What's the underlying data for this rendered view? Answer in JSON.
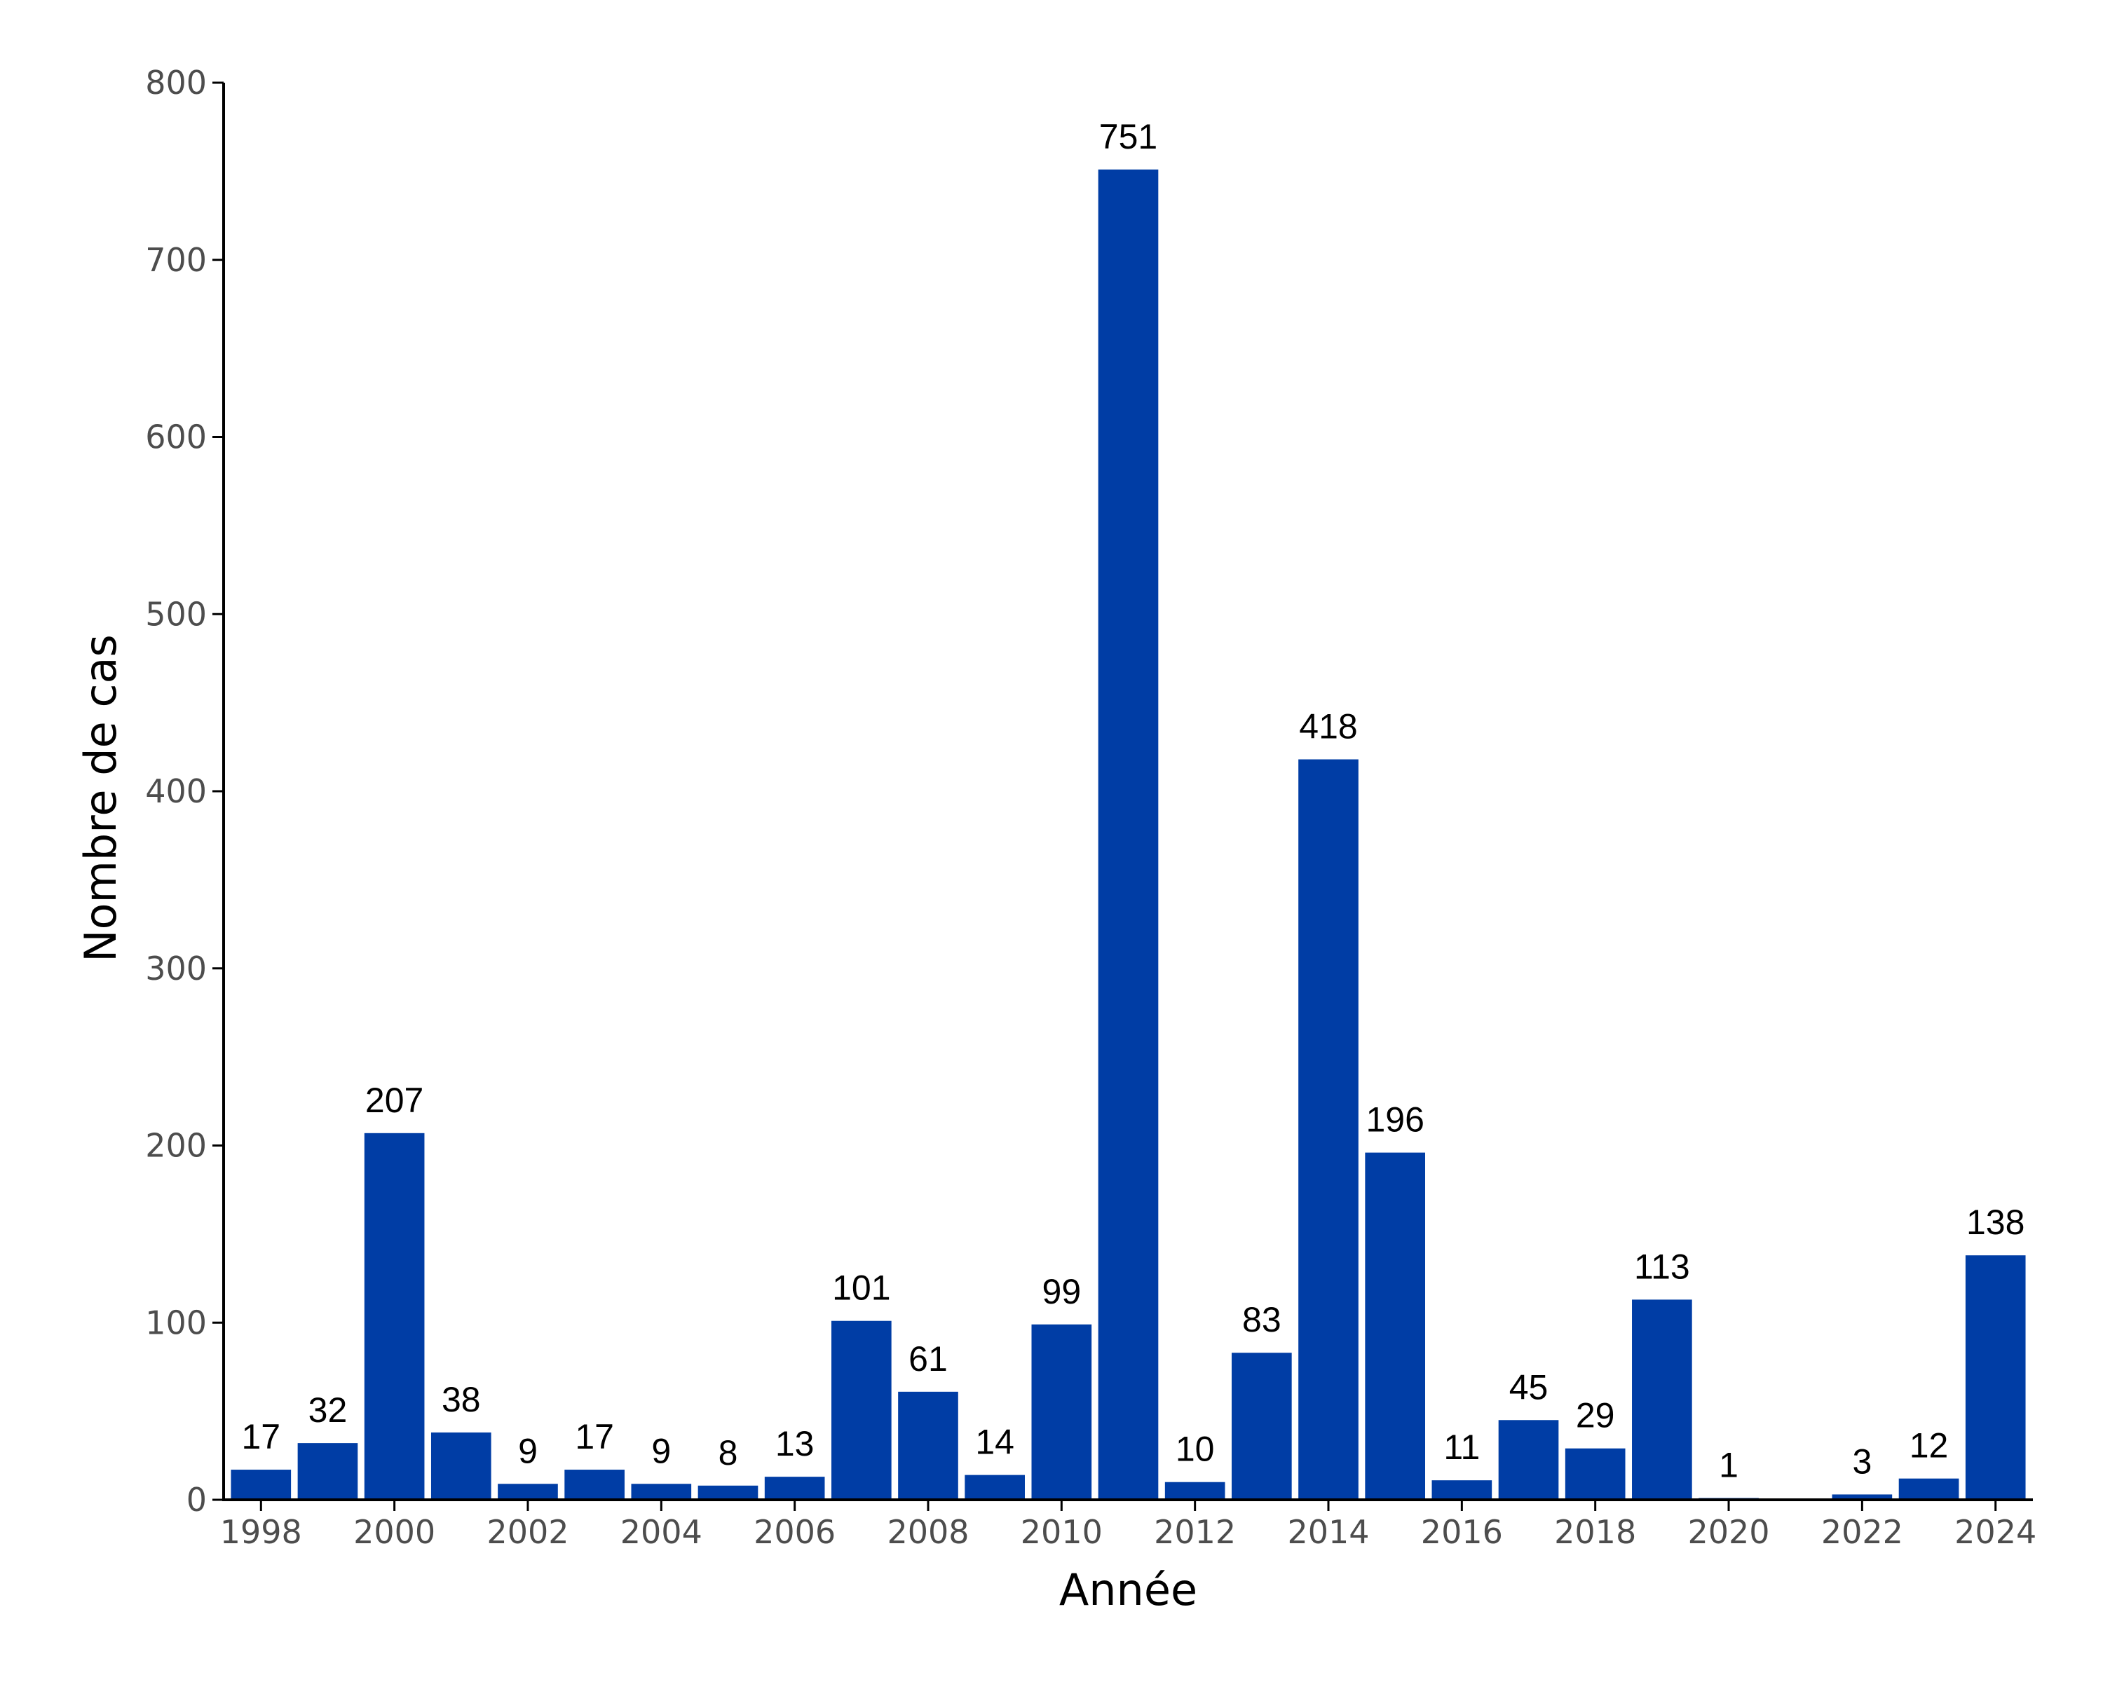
{
  "chart_data": {
    "type": "bar",
    "xlabel": "Année",
    "ylabel": "Nombre de cas",
    "ylim": [
      0,
      800
    ],
    "yticks": [
      0,
      100,
      200,
      300,
      400,
      500,
      600,
      700,
      800
    ],
    "xticks": [
      1998,
      2000,
      2002,
      2004,
      2006,
      2008,
      2010,
      2012,
      2014,
      2016,
      2018,
      2020,
      2022,
      2024
    ],
    "grid": false,
    "bar_color": "#003da5",
    "categories": [
      1998,
      1999,
      2000,
      2001,
      2002,
      2003,
      2004,
      2005,
      2006,
      2007,
      2008,
      2009,
      2010,
      2011,
      2012,
      2013,
      2014,
      2015,
      2016,
      2017,
      2018,
      2019,
      2020,
      2021,
      2022,
      2023,
      2024
    ],
    "values": [
      17,
      32,
      207,
      38,
      9,
      17,
      9,
      8,
      13,
      101,
      61,
      14,
      99,
      751,
      10,
      83,
      418,
      196,
      11,
      45,
      29,
      113,
      1,
      null,
      3,
      12,
      138
    ],
    "data_labels": [
      "17",
      "32",
      "207",
      "38",
      "9",
      "17",
      "9",
      "8",
      "13",
      "101",
      "61",
      "14",
      "99",
      "751",
      "10",
      "83",
      "418",
      "196",
      "11",
      "45",
      "29",
      "113",
      "1",
      null,
      "3",
      "12",
      "138"
    ]
  }
}
